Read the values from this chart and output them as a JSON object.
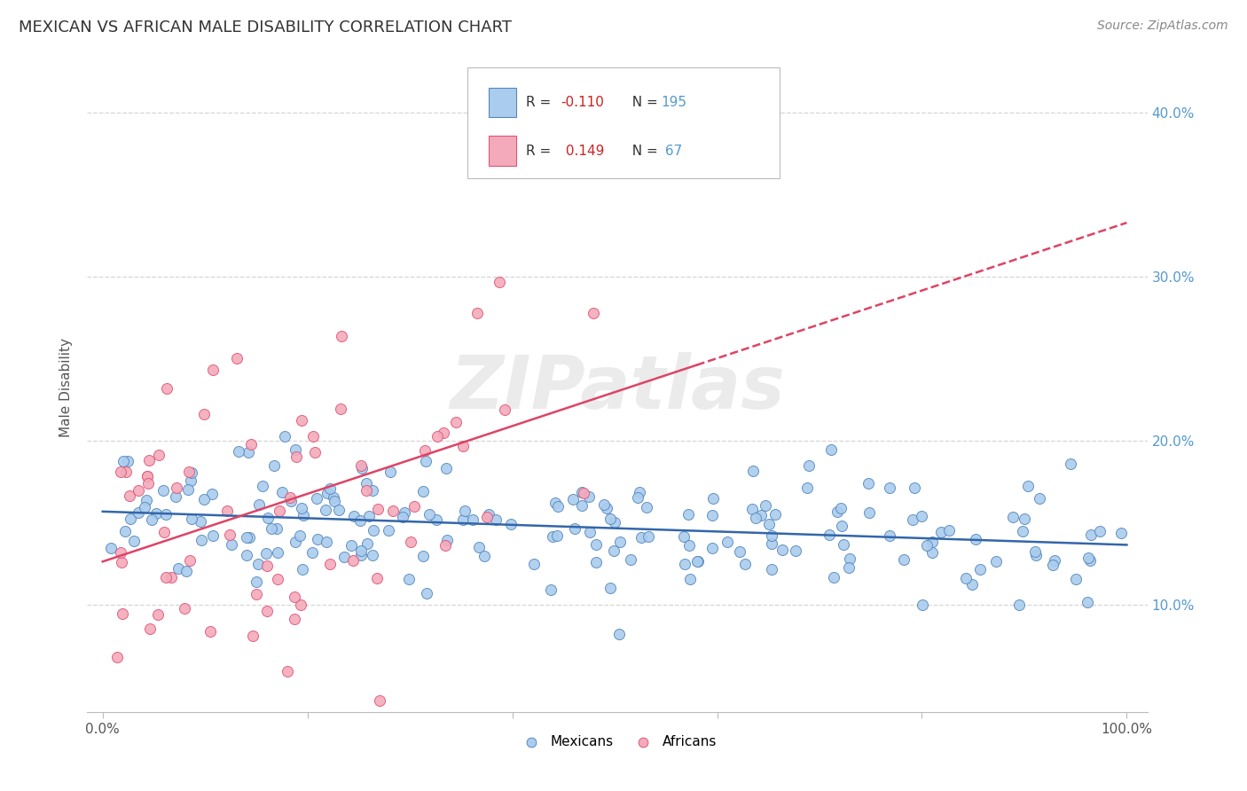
{
  "title": "MEXICAN VS AFRICAN MALE DISABILITY CORRELATION CHART",
  "source": "Source: ZipAtlas.com",
  "ylabel": "Male Disability",
  "mexican_color": "#aaccee",
  "african_color": "#f4aabb",
  "mexican_edge": "#5588bb",
  "african_edge": "#dd5577",
  "trendline_mexican_color": "#3366aa",
  "trendline_african_color": "#dd4466",
  "mexican_R": -0.11,
  "mexican_N": 195,
  "african_R": 0.149,
  "african_N": 67,
  "watermark": "ZIPatlas",
  "background_color": "#ffffff",
  "grid_color": "#cccccc",
  "ytick_vals": [
    0.1,
    0.2,
    0.3,
    0.4
  ],
  "ytick_labels": [
    "10.0%",
    "20.0%",
    "30.0%",
    "40.0%"
  ],
  "xtick_labels": [
    "0.0%",
    "100.0%"
  ]
}
